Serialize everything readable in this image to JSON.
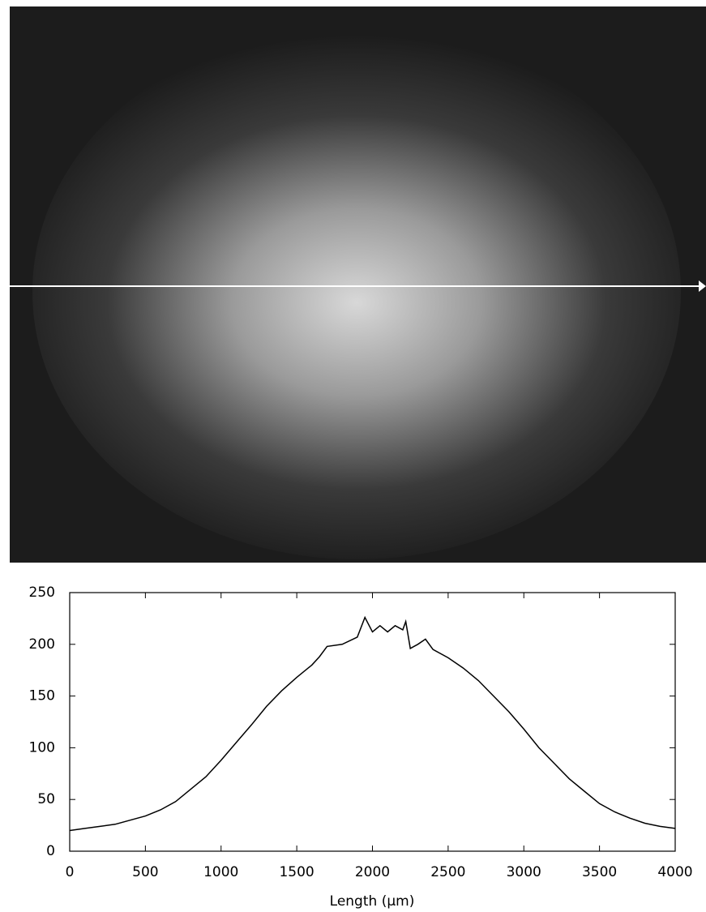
{
  "chart_data": {
    "type": "line",
    "xlabel": "Length (μm)",
    "x": [
      0,
      100,
      200,
      300,
      400,
      500,
      600,
      700,
      800,
      900,
      1000,
      1100,
      1200,
      1300,
      1400,
      1500,
      1600,
      1650,
      1700,
      1800,
      1900,
      1950,
      2000,
      2050,
      2100,
      2150,
      2200,
      2220,
      2250,
      2300,
      2350,
      2400,
      2500,
      2600,
      2700,
      2800,
      2900,
      3000,
      3100,
      3200,
      3300,
      3400,
      3500,
      3600,
      3700,
      3800,
      3900,
      4000
    ],
    "values": [
      20,
      22,
      24,
      26,
      30,
      34,
      40,
      48,
      60,
      72,
      88,
      105,
      122,
      140,
      155,
      168,
      180,
      188,
      198,
      200,
      207,
      226,
      212,
      218,
      212,
      218,
      214,
      222,
      196,
      200,
      205,
      195,
      187,
      177,
      165,
      150,
      135,
      118,
      100,
      85,
      70,
      58,
      46,
      38,
      32,
      27,
      24,
      22
    ],
    "color": "#000000",
    "xlim": [
      0,
      4000
    ],
    "xticks": [
      0,
      500,
      1000,
      1500,
      2000,
      2500,
      3000,
      3500,
      4000
    ],
    "ylim": [
      0,
      250
    ],
    "yticks": [
      0,
      50,
      100,
      150,
      200,
      250
    ]
  }
}
